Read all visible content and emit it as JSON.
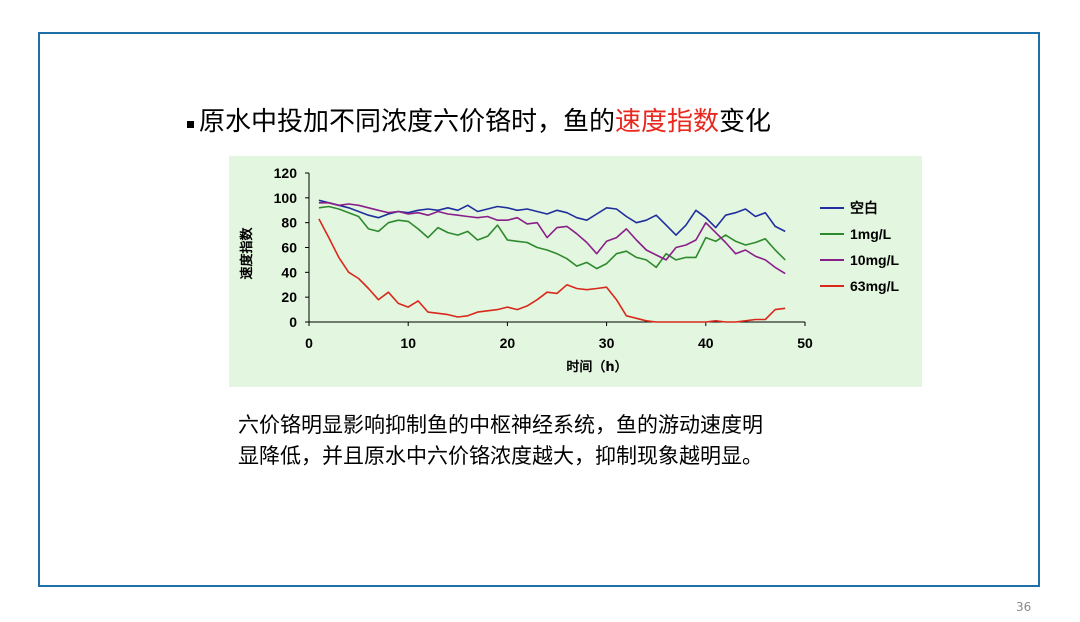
{
  "slide": {
    "title_prefix": "原水中投加不同浓度六价铬时，鱼的",
    "title_highlight": "速度指数",
    "title_suffix": "变化",
    "highlight_color": "#e8281e",
    "border_color": "#1f6fa8",
    "body_line1": "六价铬明显影响抑制鱼的中枢神经系统，鱼的游动速度明",
    "body_line2": "显降低，并且原水中六价铬浓度越大，抑制现象越明显。",
    "page_number": "36"
  },
  "chart_data": {
    "type": "line",
    "title": "",
    "xlabel": "时间（h）",
    "ylabel": "速度指数",
    "xlim": [
      0,
      50
    ],
    "ylim": [
      0,
      120
    ],
    "xticks": [
      0,
      10,
      20,
      30,
      40,
      50
    ],
    "yticks": [
      0,
      20,
      40,
      60,
      80,
      100,
      120
    ],
    "grid": false,
    "legend_position": "right",
    "background": "#e3f6df",
    "series": [
      {
        "name": "空白",
        "color": "#1f2f9e",
        "x": [
          1,
          2,
          3,
          4,
          5,
          6,
          7,
          8,
          9,
          10,
          11,
          12,
          13,
          14,
          15,
          16,
          17,
          18,
          19,
          20,
          21,
          22,
          23,
          24,
          25,
          26,
          27,
          28,
          29,
          30,
          31,
          32,
          33,
          34,
          35,
          36,
          37,
          38,
          39,
          40,
          41,
          42,
          43,
          44,
          45,
          46,
          47,
          48
        ],
        "y": [
          98,
          96,
          94,
          92,
          89,
          86,
          84,
          87,
          89,
          88,
          90,
          91,
          90,
          92,
          90,
          94,
          89,
          91,
          93,
          92,
          90,
          91,
          89,
          87,
          90,
          88,
          84,
          82,
          87,
          92,
          91,
          85,
          80,
          82,
          86,
          78,
          70,
          78,
          90,
          84,
          76,
          86,
          88,
          91,
          85,
          88,
          77,
          73
        ]
      },
      {
        "name": "1mg/L",
        "color": "#2f8a2f",
        "x": [
          1,
          2,
          3,
          4,
          5,
          6,
          7,
          8,
          9,
          10,
          11,
          12,
          13,
          14,
          15,
          16,
          17,
          18,
          19,
          20,
          21,
          22,
          23,
          24,
          25,
          26,
          27,
          28,
          29,
          30,
          31,
          32,
          33,
          34,
          35,
          36,
          37,
          38,
          39,
          40,
          41,
          42,
          43,
          44,
          45,
          46,
          47,
          48
        ],
        "y": [
          92,
          93,
          91,
          88,
          85,
          75,
          73,
          80,
          82,
          81,
          75,
          68,
          76,
          72,
          70,
          73,
          66,
          69,
          78,
          66,
          65,
          64,
          60,
          58,
          55,
          51,
          45,
          48,
          43,
          47,
          55,
          57,
          52,
          50,
          44,
          55,
          50,
          52,
          52,
          68,
          65,
          70,
          65,
          62,
          64,
          67,
          58,
          50
        ]
      },
      {
        "name": "10mg/L",
        "color": "#8a1f8a",
        "x": [
          1,
          2,
          3,
          4,
          5,
          6,
          7,
          8,
          9,
          10,
          11,
          12,
          13,
          14,
          15,
          16,
          17,
          18,
          19,
          20,
          21,
          22,
          23,
          24,
          25,
          26,
          27,
          28,
          29,
          30,
          31,
          32,
          33,
          34,
          35,
          36,
          37,
          38,
          39,
          40,
          41,
          42,
          43,
          44,
          45,
          46,
          47,
          48
        ],
        "y": [
          96,
          96,
          94,
          95,
          94,
          92,
          90,
          88,
          89,
          87,
          88,
          86,
          89,
          87,
          86,
          85,
          84,
          85,
          82,
          82,
          84,
          79,
          80,
          68,
          76,
          77,
          71,
          64,
          55,
          65,
          68,
          75,
          66,
          58,
          54,
          50,
          60,
          62,
          66,
          80,
          72,
          64,
          55,
          58,
          53,
          50,
          44,
          39
        ]
      },
      {
        "name": "63mg/L",
        "color": "#d9291c",
        "x": [
          1,
          2,
          3,
          4,
          5,
          6,
          7,
          8,
          9,
          10,
          11,
          12,
          13,
          14,
          15,
          16,
          17,
          18,
          19,
          20,
          21,
          22,
          23,
          24,
          25,
          26,
          27,
          28,
          29,
          30,
          31,
          32,
          33,
          34,
          35,
          36,
          37,
          38,
          39,
          40,
          41,
          42,
          43,
          44,
          45,
          46,
          47,
          48
        ],
        "y": [
          83,
          68,
          52,
          40,
          35,
          27,
          18,
          24,
          15,
          12,
          17,
          8,
          7,
          6,
          4,
          5,
          8,
          9,
          10,
          12,
          10,
          13,
          18,
          24,
          23,
          30,
          27,
          26,
          27,
          28,
          18,
          5,
          3,
          1,
          0,
          0,
          0,
          0,
          0,
          0,
          1,
          0,
          0,
          1,
          2,
          2,
          10,
          11
        ]
      }
    ]
  }
}
